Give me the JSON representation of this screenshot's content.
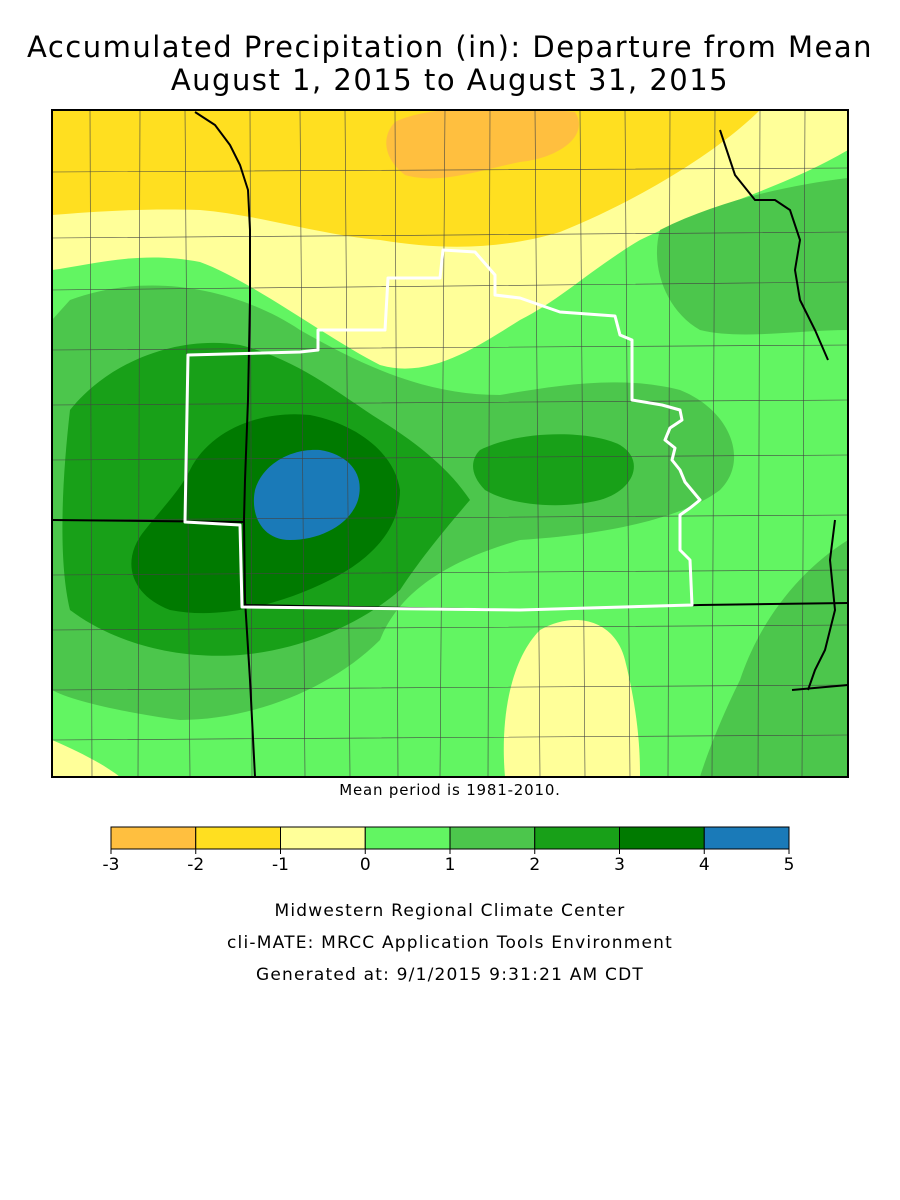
{
  "title_line1": "Accumulated Precipitation (in): Departure from Mean",
  "title_line2": "August 1, 2015 to August 31, 2015",
  "mean_period_note": "Mean period is 1981-2010.",
  "legend": {
    "ticks": [
      "-3",
      "-2",
      "-1",
      "0",
      "1",
      "2",
      "3",
      "4",
      "5"
    ],
    "bins": [
      {
        "from": -3,
        "to": -2,
        "color": "#ffbf3f"
      },
      {
        "from": -2,
        "to": -1,
        "color": "#ffdf20"
      },
      {
        "from": -1,
        "to": 0,
        "color": "#ffff99"
      },
      {
        "from": 0,
        "to": 1,
        "color": "#62f562"
      },
      {
        "from": 1,
        "to": 2,
        "color": "#4cc64c"
      },
      {
        "from": 2,
        "to": 3,
        "color": "#18a018"
      },
      {
        "from": 3,
        "to": 4,
        "color": "#007a00"
      },
      {
        "from": 4,
        "to": 5,
        "color": "#1a7ab8"
      }
    ]
  },
  "credits": {
    "line1": "Midwestern Regional Climate Center",
    "line2": "cli-MATE: MRCC Application Tools Environment",
    "line3": "Generated at: 9/1/2015 9:31:21 AM CDT"
  }
}
